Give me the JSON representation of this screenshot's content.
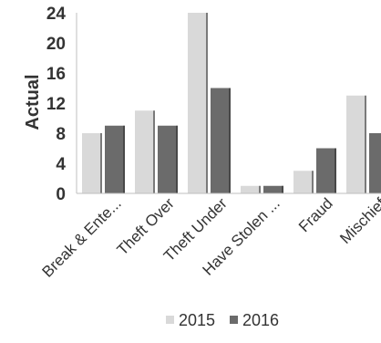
{
  "chart_data": {
    "type": "bar",
    "title": "",
    "xlabel": "",
    "ylabel": "Actual",
    "ylim": [
      0,
      24
    ],
    "yticks": [
      0,
      4,
      8,
      12,
      16,
      20,
      24
    ],
    "categories": [
      "Break & Ente...",
      "Theft Over",
      "Theft Under",
      "Have Stolen ...",
      "Fraud",
      "Mischief"
    ],
    "series": [
      {
        "name": "2015",
        "values": [
          8,
          11,
          24,
          1,
          3,
          13
        ],
        "color": "#d9d9d9"
      },
      {
        "name": "2016",
        "values": [
          9,
          9,
          14,
          1,
          6,
          8
        ],
        "color": "#6b6b6b"
      }
    ],
    "grid": false,
    "legend_position": "bottom"
  }
}
